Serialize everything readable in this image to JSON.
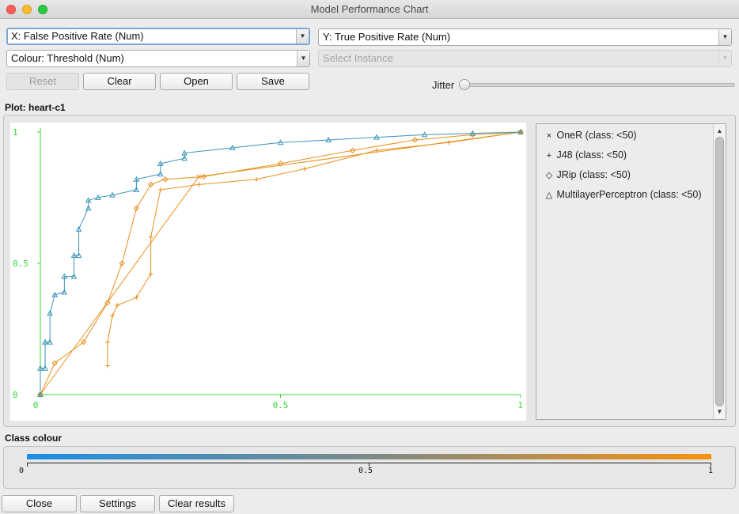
{
  "window": {
    "title": "Model Performance Chart"
  },
  "controls": {
    "x_axis": "X: False Positive Rate (Num)",
    "y_axis": "Y: True Positive Rate (Num)",
    "colour": "Colour: Threshold (Num)",
    "instance": "Select Instance",
    "reset": "Reset",
    "clear": "Clear",
    "open": "Open",
    "save": "Save",
    "jitter": "Jitter"
  },
  "plot_label": "Plot: heart-c1",
  "legend": [
    {
      "symbol": "×",
      "label": "OneR (class: <50)"
    },
    {
      "symbol": "+",
      "label": "J48 (class: <50)"
    },
    {
      "symbol": "◇",
      "label": "JRip (class: <50)"
    },
    {
      "symbol": "△",
      "label": "MultilayerPerceptron (class: <50)"
    }
  ],
  "class_colour": {
    "label": "Class colour",
    "ticks": [
      "0",
      "0.5",
      "1"
    ],
    "colors": {
      "low": "#1b8fe6",
      "mid": "#7c8a87",
      "high": "#f6920f"
    }
  },
  "buttons": {
    "close": "Close",
    "settings": "Settings",
    "clear_results": "Clear results"
  },
  "colors": {
    "axis": "#33dd33",
    "blue": "#2b8ed6",
    "teal": "#3a94b8",
    "orange": "#e8901c"
  },
  "chart_data": {
    "type": "line",
    "xlabel": "",
    "ylabel": "",
    "xlim": [
      0,
      1
    ],
    "ylim": [
      0,
      1
    ],
    "x_ticks": [
      "0",
      "0.5",
      "1"
    ],
    "y_ticks": [
      "0",
      "0.5",
      "1"
    ],
    "grid": false,
    "legend_position": "right",
    "series": [
      {
        "name": "OneR (class: <50)",
        "x": [
          0,
          0.33,
          1
        ],
        "y": [
          0,
          0.83,
          1
        ]
      },
      {
        "name": "J48 (class: <50)",
        "x": [
          0.14,
          0.14,
          0.15,
          0.16,
          0.2,
          0.23,
          0.23,
          0.25,
          0.33,
          0.45,
          0.55,
          0.7,
          0.85,
          1
        ],
        "y": [
          0.11,
          0.2,
          0.3,
          0.34,
          0.37,
          0.46,
          0.6,
          0.78,
          0.8,
          0.82,
          0.86,
          0.93,
          0.96,
          1
        ]
      },
      {
        "name": "JRip (class: <50)",
        "x": [
          0,
          0.03,
          0.09,
          0.14,
          0.17,
          0.2,
          0.23,
          0.26,
          0.34,
          0.5,
          0.65,
          0.78,
          0.9,
          1
        ],
        "y": [
          0,
          0.12,
          0.2,
          0.35,
          0.5,
          0.71,
          0.8,
          0.82,
          0.83,
          0.88,
          0.93,
          0.97,
          0.99,
          1
        ]
      },
      {
        "name": "MultilayerPerceptron (class: <50)",
        "x": [
          0,
          0,
          0.01,
          0.01,
          0.02,
          0.02,
          0.03,
          0.05,
          0.05,
          0.07,
          0.07,
          0.08,
          0.08,
          0.1,
          0.1,
          0.12,
          0.15,
          0.2,
          0.2,
          0.25,
          0.25,
          0.3,
          0.3,
          0.4,
          0.5,
          0.6,
          0.7,
          0.8,
          0.9,
          1
        ],
        "y": [
          0,
          0.1,
          0.1,
          0.2,
          0.2,
          0.31,
          0.38,
          0.39,
          0.45,
          0.45,
          0.53,
          0.53,
          0.63,
          0.71,
          0.74,
          0.75,
          0.76,
          0.78,
          0.82,
          0.84,
          0.88,
          0.9,
          0.92,
          0.94,
          0.96,
          0.97,
          0.98,
          0.99,
          0.995,
          1
        ]
      }
    ]
  }
}
